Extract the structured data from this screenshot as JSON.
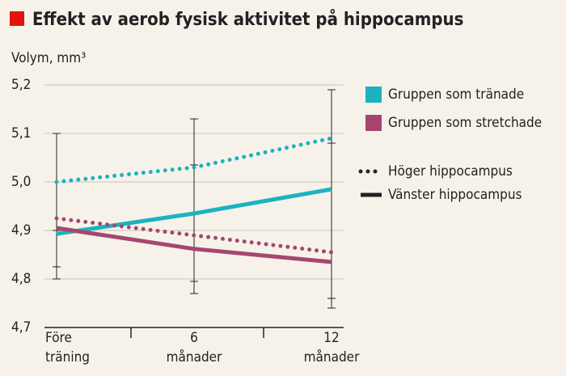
{
  "chart_data": {
    "type": "line",
    "title": "Effekt av aerob fysisk aktivitet på hippocampus",
    "y_label": "Volym, mm³",
    "categories": [
      [
        "Före",
        "träning"
      ],
      [
        "6",
        "månader"
      ],
      [
        "12",
        "månader"
      ]
    ],
    "ylim": [
      4.7,
      5.2
    ],
    "yticks": [
      {
        "value": 4.7,
        "label": "4,7"
      },
      {
        "value": 4.8,
        "label": "4,8"
      },
      {
        "value": 4.9,
        "label": "4,9"
      },
      {
        "value": 5.0,
        "label": "5,0"
      },
      {
        "value": 5.1,
        "label": "5,1"
      },
      {
        "value": 5.2,
        "label": "5,2"
      }
    ],
    "grid": true,
    "groups": [
      {
        "name": "Gruppen som tränade",
        "color": "#1bb3bf"
      },
      {
        "name": "Gruppen som stretchade",
        "color": "#a6466f"
      }
    ],
    "sides": [
      {
        "name": "Höger hippocampus",
        "style": "dotted"
      },
      {
        "name": "Vänster hippocampus",
        "style": "solid"
      }
    ],
    "series": [
      {
        "group": 0,
        "side": 0,
        "values": [
          5.0,
          5.03,
          5.09
        ]
      },
      {
        "group": 0,
        "side": 1,
        "values": [
          4.893,
          4.935,
          4.985
        ]
      },
      {
        "group": 1,
        "side": 0,
        "values": [
          4.925,
          4.89,
          4.855
        ]
      },
      {
        "group": 1,
        "side": 1,
        "values": [
          4.905,
          4.862,
          4.835
        ]
      }
    ],
    "error_bars": [
      {
        "category": 0,
        "low": 4.8,
        "high": 5.1
      },
      {
        "category": 0,
        "low": 4.825,
        "high": 4.9
      },
      {
        "category": 1,
        "low": 4.795,
        "high": 5.13
      },
      {
        "category": 1,
        "low": 4.77,
        "high": 5.035
      },
      {
        "category": 2,
        "low": 4.76,
        "high": 5.19
      },
      {
        "category": 2,
        "low": 4.74,
        "high": 5.08
      }
    ]
  }
}
